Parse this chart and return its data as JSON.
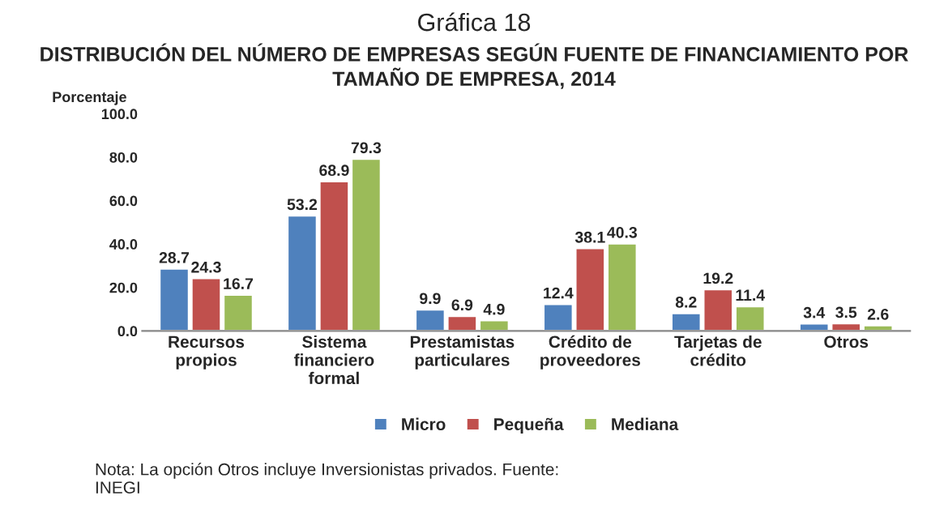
{
  "chart_data": {
    "type": "bar",
    "title": "Gráfica 18",
    "subtitle": "DISTRIBUCIÓN DEL NÚMERO DE EMPRESAS SEGÚN FUENTE DE FINANCIAMIENTO POR TAMAÑO DE EMPRESA, 2014",
    "ylabel": "Porcentaje",
    "categories": [
      "Recursos\npropios",
      "Sistema\nfinanciero\nformal",
      "Prestamistas\nparticulares",
      "Crédito de\nproveedores",
      "Tarjetas de\ncrédito",
      "Otros"
    ],
    "series": [
      {
        "name": "Micro",
        "color": "#4f81bd",
        "values": [
          28.7,
          53.2,
          9.9,
          12.4,
          8.2,
          3.4
        ]
      },
      {
        "name": "Pequeña",
        "color": "#c0504d",
        "values": [
          24.3,
          68.9,
          6.9,
          38.1,
          19.2,
          3.5
        ]
      },
      {
        "name": "Mediana",
        "color": "#9bbb59",
        "values": [
          16.7,
          79.3,
          4.9,
          40.3,
          11.4,
          2.6
        ]
      }
    ],
    "ylim": [
      0,
      100
    ],
    "yticks": [
      {
        "value": 0,
        "label": "0.0"
      },
      {
        "value": 20,
        "label": "20.0"
      },
      {
        "value": 40,
        "label": "40.0"
      },
      {
        "value": 60,
        "label": "60.0"
      },
      {
        "value": 80,
        "label": "80.0"
      },
      {
        "value": 100,
        "label": "100.0"
      }
    ],
    "data_labels": true,
    "grid": false,
    "legend": "bottom",
    "annotations": [
      "Nota: La opción Otros incluye Inversionistas privados. Fuente:\nINEGI"
    ]
  }
}
